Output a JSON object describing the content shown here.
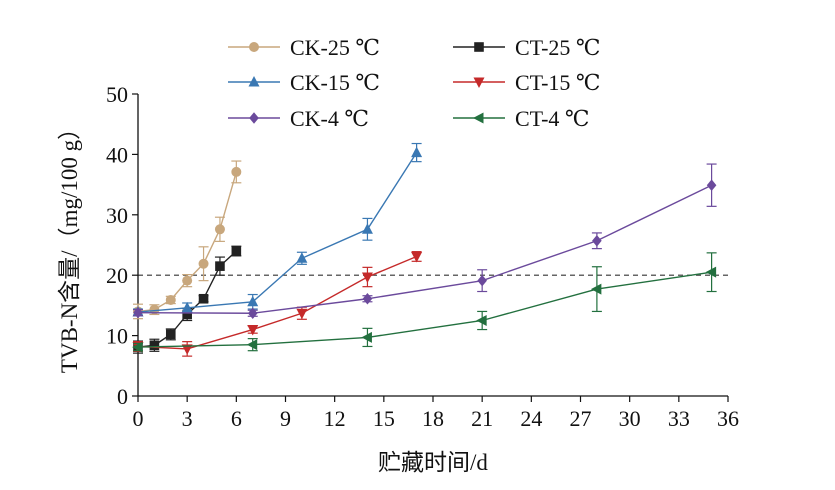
{
  "chart_data": {
    "type": "line",
    "xlabel": "贮藏时间/d",
    "ylabel": "TVB-N含量/（mg/100 g）",
    "xlim": [
      0,
      36
    ],
    "ylim": [
      0,
      50
    ],
    "xticks": [
      0,
      3,
      6,
      9,
      12,
      15,
      18,
      21,
      24,
      27,
      30,
      33,
      36
    ],
    "yticks": [
      0,
      10,
      20,
      30,
      40,
      50
    ],
    "reference_line": {
      "y": 20,
      "style": "dashed"
    },
    "legend_position": "top",
    "series": [
      {
        "name": "CK-25 ℃",
        "color": "#c8a77d",
        "marker": "circle",
        "x": [
          0,
          1,
          2,
          3,
          4,
          5,
          6
        ],
        "y": [
          14.0,
          14.3,
          15.9,
          19.1,
          21.9,
          27.6,
          37.1
        ],
        "err": [
          1.2,
          0.8,
          0.6,
          1.0,
          2.8,
          2.0,
          1.8
        ]
      },
      {
        "name": "CT-25 ℃",
        "color": "#222222",
        "marker": "square",
        "x": [
          0,
          1,
          2,
          3,
          4,
          5,
          6
        ],
        "y": [
          8.1,
          8.4,
          10.2,
          13.5,
          16.1,
          21.5,
          24.0
        ],
        "err": [
          1.0,
          1.0,
          0.9,
          1.0,
          0.5,
          1.5,
          0.8
        ]
      },
      {
        "name": "CK-15 ℃",
        "color": "#3a78b3",
        "marker": "triangle-up",
        "x": [
          0,
          3,
          7,
          10,
          14,
          17
        ],
        "y": [
          13.9,
          14.6,
          15.6,
          22.8,
          27.6,
          40.3
        ],
        "err": [
          0.5,
          0.8,
          1.2,
          1.0,
          1.8,
          1.5
        ]
      },
      {
        "name": "CT-15 ℃",
        "color": "#c52a2a",
        "marker": "triangle-down",
        "x": [
          0,
          3,
          7,
          10,
          14,
          17
        ],
        "y": [
          8.2,
          7.8,
          11.0,
          13.7,
          19.7,
          23.1
        ],
        "err": [
          0.8,
          1.2,
          0.6,
          1.0,
          1.6,
          0.8
        ]
      },
      {
        "name": "CK-4 ℃",
        "color": "#6b4a9c",
        "marker": "diamond",
        "x": [
          0,
          7,
          14,
          21,
          28,
          35
        ],
        "y": [
          13.8,
          13.7,
          16.1,
          19.1,
          25.7,
          34.9
        ],
        "err": [
          0.5,
          0.5,
          0.5,
          1.8,
          1.3,
          3.5
        ]
      },
      {
        "name": "CT-4 ℃",
        "color": "#23703f",
        "marker": "triangle-left",
        "x": [
          0,
          7,
          14,
          21,
          28,
          35
        ],
        "y": [
          8.1,
          8.5,
          9.7,
          12.5,
          17.7,
          20.5
        ],
        "err": [
          0.6,
          1.0,
          1.5,
          1.5,
          3.7,
          3.2
        ]
      }
    ]
  }
}
